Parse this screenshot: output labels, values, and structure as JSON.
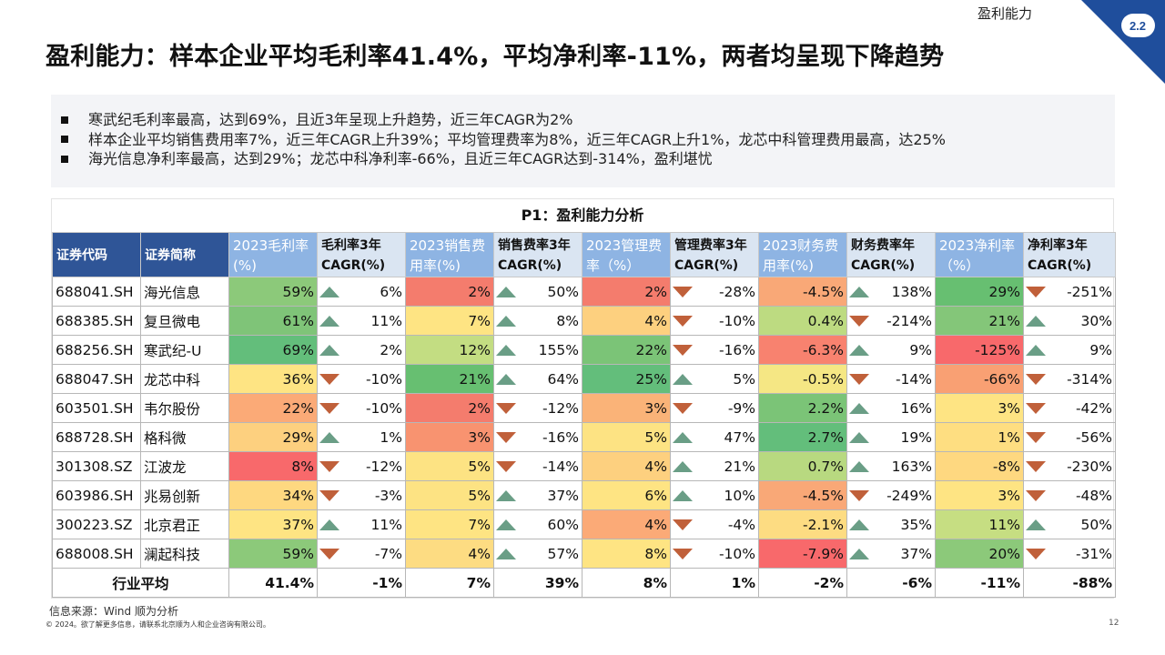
{
  "header": {
    "section_label": "盈利能力",
    "section_number": "2.2",
    "title": "盈利能力：样本企业平均毛利率41.4%，平均净利率-11%，两者均呈现下降趋势",
    "accent_color": "#1f4e9c"
  },
  "summary": {
    "bullets": [
      "寒武纪毛利率最高，达到69%，且近3年呈现上升趋势，近三年CAGR为2%",
      "样本企业平均销售费用率7%，近三年CAGR上升39%；平均管理费率为8%，近三年CAGR上升1%，龙芯中科管理费用最高，达25%",
      "海光信息净利率最高，达到29%；龙芯中科净利率-66%，且近三年CAGR达到-314%，盈利堪忧"
    ]
  },
  "table": {
    "title": "P1：盈利能力分析",
    "headers": [
      "证券代码",
      "证券简称",
      "2023毛利率(%)",
      "毛利率3年CAGR(%)",
      "2023销售费用率(%)",
      "销售费率3年CAGR(%)",
      "2023管理费率（%）",
      "管理费率3年CAGR(%)",
      "2023财务费用率(%)",
      "财务费率年CAGR(%)",
      "2023净利率（%）",
      "净利率3年CAGR(%)"
    ],
    "rows": [
      {
        "code": "688041.SH",
        "name": "海光信息",
        "cells": [
          {
            "text": "59%",
            "color": "#8cc97a"
          },
          {
            "text": "6%",
            "dir": "up"
          },
          {
            "text": "2%",
            "color": "#f47c6d"
          },
          {
            "text": "50%",
            "dir": "up"
          },
          {
            "text": "2%",
            "color": "#f47c6d"
          },
          {
            "text": "-28%",
            "dir": "down"
          },
          {
            "text": "-4.5%",
            "color": "#f9a877"
          },
          {
            "text": "138%",
            "dir": "up"
          },
          {
            "text": "29%",
            "color": "#67bf71"
          },
          {
            "text": "-251%",
            "dir": "down"
          }
        ]
      },
      {
        "code": "688385.SH",
        "name": "复旦微电",
        "cells": [
          {
            "text": "61%",
            "color": "#7fc478"
          },
          {
            "text": "11%",
            "dir": "up"
          },
          {
            "text": "7%",
            "color": "#fee483"
          },
          {
            "text": "8%",
            "dir": "up"
          },
          {
            "text": "4%",
            "color": "#fdd07f"
          },
          {
            "text": "-10%",
            "dir": "down"
          },
          {
            "text": "0.4%",
            "color": "#bddb81"
          },
          {
            "text": "-214%",
            "dir": "down"
          },
          {
            "text": "21%",
            "color": "#84c679"
          },
          {
            "text": "30%",
            "dir": "up"
          }
        ]
      },
      {
        "code": "688256.SH",
        "name": "寒武纪-U",
        "cells": [
          {
            "text": "69%",
            "color": "#63be7b"
          },
          {
            "text": "2%",
            "dir": "up"
          },
          {
            "text": "12%",
            "color": "#c3dd82"
          },
          {
            "text": "155%",
            "dir": "up"
          },
          {
            "text": "22%",
            "color": "#7bc477"
          },
          {
            "text": "-16%",
            "dir": "down"
          },
          {
            "text": "-6.3%",
            "color": "#f8826f"
          },
          {
            "text": "9%",
            "dir": "up"
          },
          {
            "text": "-125%",
            "color": "#f8696b"
          },
          {
            "text": "9%",
            "dir": "up"
          }
        ]
      },
      {
        "code": "688047.SH",
        "name": "龙芯中科",
        "cells": [
          {
            "text": "36%",
            "color": "#fee483"
          },
          {
            "text": "-10%",
            "dir": "down"
          },
          {
            "text": "21%",
            "color": "#67bf71"
          },
          {
            "text": "64%",
            "dir": "up"
          },
          {
            "text": "25%",
            "color": "#63be7b"
          },
          {
            "text": "5%",
            "dir": "up"
          },
          {
            "text": "-0.5%",
            "color": "#f5e784"
          },
          {
            "text": "-14%",
            "dir": "down"
          },
          {
            "text": "-66%",
            "color": "#f9a073"
          },
          {
            "text": "-314%",
            "dir": "down"
          }
        ]
      },
      {
        "code": "603501.SH",
        "name": "韦尔股份",
        "cells": [
          {
            "text": "22%",
            "color": "#fbaa77"
          },
          {
            "text": "-10%",
            "dir": "down"
          },
          {
            "text": "2%",
            "color": "#f47c6d"
          },
          {
            "text": "-12%",
            "dir": "down"
          },
          {
            "text": "3%",
            "color": "#fab378"
          },
          {
            "text": "-9%",
            "dir": "down"
          },
          {
            "text": "2.2%",
            "color": "#7bc477"
          },
          {
            "text": "16%",
            "dir": "up"
          },
          {
            "text": "3%",
            "color": "#fee483"
          },
          {
            "text": "-42%",
            "dir": "down"
          }
        ]
      },
      {
        "code": "688728.SH",
        "name": "格科微",
        "cells": [
          {
            "text": "29%",
            "color": "#fdd07f"
          },
          {
            "text": "1%",
            "dir": "up"
          },
          {
            "text": "3%",
            "color": "#f89370"
          },
          {
            "text": "-16%",
            "dir": "down"
          },
          {
            "text": "5%",
            "color": "#fde383"
          },
          {
            "text": "47%",
            "dir": "up"
          },
          {
            "text": "2.7%",
            "color": "#63be7b"
          },
          {
            "text": "19%",
            "dir": "up"
          },
          {
            "text": "1%",
            "color": "#fede81"
          },
          {
            "text": "-56%",
            "dir": "down"
          }
        ]
      },
      {
        "code": "301308.SZ",
        "name": "江波龙",
        "cells": [
          {
            "text": "8%",
            "color": "#f8696b"
          },
          {
            "text": "-12%",
            "dir": "down"
          },
          {
            "text": "5%",
            "color": "#fde383"
          },
          {
            "text": "-14%",
            "dir": "down"
          },
          {
            "text": "4%",
            "color": "#fdd07f"
          },
          {
            "text": "21%",
            "dir": "up"
          },
          {
            "text": "0.7%",
            "color": "#b8d980"
          },
          {
            "text": "163%",
            "dir": "up"
          },
          {
            "text": "-8%",
            "color": "#fed880"
          },
          {
            "text": "-230%",
            "dir": "down"
          }
        ]
      },
      {
        "code": "603986.SH",
        "name": "兆易创新",
        "cells": [
          {
            "text": "34%",
            "color": "#fed880"
          },
          {
            "text": "-3%",
            "dir": "down"
          },
          {
            "text": "5%",
            "color": "#fde383"
          },
          {
            "text": "37%",
            "dir": "up"
          },
          {
            "text": "6%",
            "color": "#fee483"
          },
          {
            "text": "10%",
            "dir": "up"
          },
          {
            "text": "-4.5%",
            "color": "#f9a877"
          },
          {
            "text": "-249%",
            "dir": "down"
          },
          {
            "text": "3%",
            "color": "#fee483"
          },
          {
            "text": "-48%",
            "dir": "down"
          }
        ]
      },
      {
        "code": "300223.SZ",
        "name": "北京君正",
        "cells": [
          {
            "text": "37%",
            "color": "#fee483"
          },
          {
            "text": "11%",
            "dir": "up"
          },
          {
            "text": "7%",
            "color": "#fee483"
          },
          {
            "text": "60%",
            "dir": "up"
          },
          {
            "text": "4%",
            "color": "#fbaa77"
          },
          {
            "text": "-4%",
            "dir": "down"
          },
          {
            "text": "-2.1%",
            "color": "#fddc82"
          },
          {
            "text": "35%",
            "dir": "up"
          },
          {
            "text": "11%",
            "color": "#c6de82"
          },
          {
            "text": "50%",
            "dir": "up"
          }
        ]
      },
      {
        "code": "688008.SH",
        "name": "澜起科技",
        "cells": [
          {
            "text": "59%",
            "color": "#8cc97a"
          },
          {
            "text": "-7%",
            "dir": "down"
          },
          {
            "text": "4%",
            "color": "#fddc82"
          },
          {
            "text": "57%",
            "dir": "up"
          },
          {
            "text": "8%",
            "color": "#fee483"
          },
          {
            "text": "-10%",
            "dir": "down"
          },
          {
            "text": "-7.9%",
            "color": "#f8696b"
          },
          {
            "text": "37%",
            "dir": "up"
          },
          {
            "text": "20%",
            "color": "#8cc97a"
          },
          {
            "text": "-31%",
            "dir": "down"
          }
        ]
      }
    ],
    "average_row": {
      "label": "行业平均",
      "values": [
        "41.4%",
        "-1%",
        "7%",
        "39%",
        "8%",
        "1%",
        "-2%",
        "-6%",
        "-11%",
        "-88%"
      ]
    }
  },
  "footer": {
    "source": "信息来源：Wind 顺为分析",
    "copyright": "© 2024。欲了解更多信息，请联系北京顺为人和企业咨询有限公司。",
    "page_number": "12"
  }
}
